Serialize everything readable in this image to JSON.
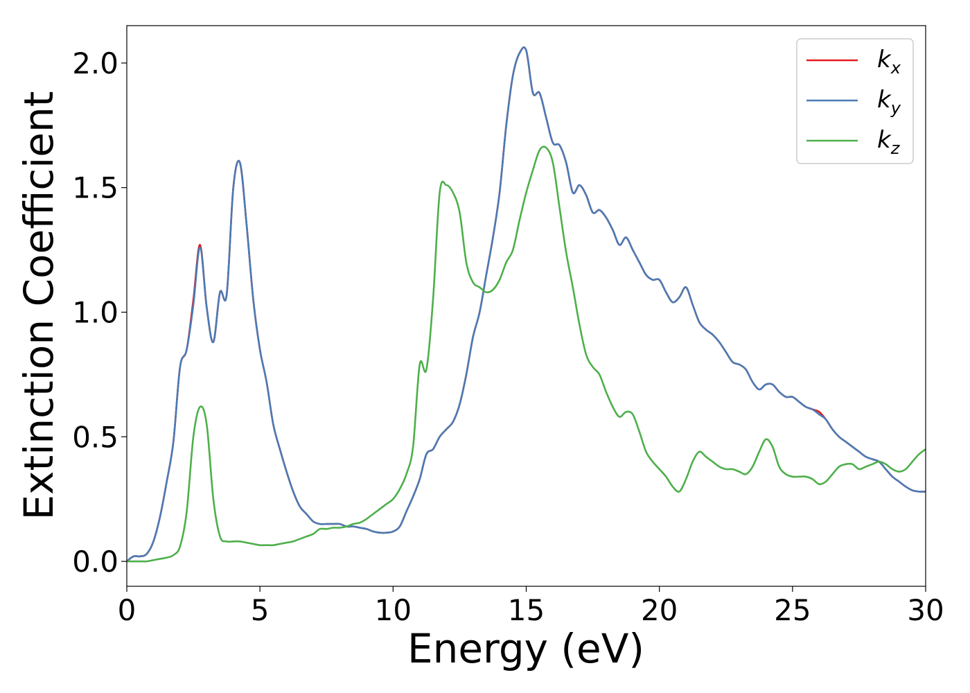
{
  "chart_data": {
    "type": "line",
    "title": "",
    "xlabel": "Energy (eV)",
    "ylabel": "Extinction Coefficient",
    "xlim": [
      0,
      30
    ],
    "ylim": [
      -0.1,
      2.15
    ],
    "xticks": [
      0,
      5,
      10,
      15,
      20,
      25,
      30
    ],
    "xtick_labels": [
      "0",
      "5",
      "10",
      "15",
      "20",
      "25",
      "30"
    ],
    "yticks": [
      0.0,
      0.5,
      1.0,
      1.5,
      2.0
    ],
    "ytick_labels": [
      "0.0",
      "0.5",
      "1.0",
      "1.5",
      "2.0"
    ],
    "grid": false,
    "legend_position": "top-right",
    "x": [
      0,
      0.25,
      0.5,
      0.75,
      1,
      1.25,
      1.5,
      1.75,
      2,
      2.25,
      2.5,
      2.75,
      3,
      3.25,
      3.5,
      3.75,
      4,
      4.25,
      4.5,
      4.75,
      5,
      5.25,
      5.5,
      5.75,
      6,
      6.25,
      6.5,
      6.75,
      7,
      7.25,
      7.5,
      7.75,
      8,
      8.25,
      8.5,
      8.75,
      9,
      9.25,
      9.5,
      9.75,
      10,
      10.25,
      10.5,
      10.75,
      11,
      11.25,
      11.5,
      11.75,
      12,
      12.25,
      12.5,
      12.75,
      13,
      13.25,
      13.5,
      13.75,
      14,
      14.25,
      14.5,
      14.75,
      15,
      15.25,
      15.5,
      15.75,
      16,
      16.25,
      16.5,
      16.75,
      17,
      17.25,
      17.5,
      17.75,
      18,
      18.25,
      18.5,
      18.75,
      19,
      19.25,
      19.5,
      19.75,
      20,
      20.25,
      20.5,
      20.75,
      21,
      21.25,
      21.5,
      21.75,
      22,
      22.25,
      22.5,
      22.75,
      23,
      23.25,
      23.5,
      23.75,
      24,
      24.25,
      24.5,
      24.75,
      25,
      25.25,
      25.5,
      25.75,
      26,
      26.25,
      26.5,
      26.75,
      27,
      27.25,
      27.5,
      27.75,
      28,
      28.25,
      28.5,
      28.75,
      29,
      29.25,
      29.5,
      29.75,
      30
    ],
    "series": [
      {
        "name": "k_x",
        "label_base": "k",
        "label_sub": "x",
        "color": "#e41a1c",
        "values": [
          0.0,
          0.02,
          0.02,
          0.03,
          0.08,
          0.18,
          0.32,
          0.48,
          0.78,
          0.85,
          1.05,
          1.27,
          1.02,
          0.88,
          1.08,
          1.07,
          1.5,
          1.6,
          1.35,
          1.05,
          0.85,
          0.72,
          0.55,
          0.45,
          0.36,
          0.28,
          0.22,
          0.19,
          0.16,
          0.15,
          0.15,
          0.15,
          0.15,
          0.14,
          0.14,
          0.135,
          0.13,
          0.12,
          0.115,
          0.115,
          0.12,
          0.14,
          0.2,
          0.26,
          0.33,
          0.43,
          0.45,
          0.5,
          0.53,
          0.56,
          0.63,
          0.75,
          0.9,
          1.0,
          1.15,
          1.3,
          1.48,
          1.75,
          1.95,
          2.04,
          2.05,
          1.88,
          1.88,
          1.78,
          1.68,
          1.67,
          1.6,
          1.48,
          1.51,
          1.47,
          1.4,
          1.41,
          1.38,
          1.33,
          1.27,
          1.3,
          1.25,
          1.2,
          1.15,
          1.13,
          1.13,
          1.08,
          1.04,
          1.06,
          1.1,
          1.03,
          0.96,
          0.93,
          0.91,
          0.88,
          0.84,
          0.8,
          0.79,
          0.77,
          0.72,
          0.69,
          0.71,
          0.71,
          0.68,
          0.66,
          0.66,
          0.64,
          0.62,
          0.61,
          0.6,
          0.57,
          0.53,
          0.5,
          0.48,
          0.46,
          0.44,
          0.42,
          0.41,
          0.4,
          0.37,
          0.34,
          0.32,
          0.3,
          0.285,
          0.28,
          0.28
        ]
      },
      {
        "name": "k_y",
        "label_base": "k",
        "label_sub": "y",
        "color": "#4a7bb5",
        "values": [
          0.0,
          0.02,
          0.02,
          0.03,
          0.08,
          0.18,
          0.32,
          0.48,
          0.78,
          0.85,
          1.03,
          1.26,
          1.02,
          0.88,
          1.08,
          1.07,
          1.5,
          1.6,
          1.35,
          1.05,
          0.85,
          0.72,
          0.55,
          0.45,
          0.36,
          0.28,
          0.22,
          0.19,
          0.16,
          0.15,
          0.15,
          0.15,
          0.15,
          0.14,
          0.14,
          0.135,
          0.13,
          0.12,
          0.115,
          0.115,
          0.12,
          0.14,
          0.2,
          0.26,
          0.33,
          0.43,
          0.45,
          0.5,
          0.53,
          0.56,
          0.63,
          0.75,
          0.9,
          1.0,
          1.15,
          1.3,
          1.48,
          1.75,
          1.95,
          2.04,
          2.05,
          1.88,
          1.88,
          1.78,
          1.68,
          1.67,
          1.6,
          1.48,
          1.51,
          1.47,
          1.4,
          1.41,
          1.38,
          1.33,
          1.27,
          1.3,
          1.25,
          1.2,
          1.15,
          1.13,
          1.13,
          1.08,
          1.04,
          1.06,
          1.1,
          1.03,
          0.96,
          0.93,
          0.91,
          0.88,
          0.84,
          0.8,
          0.79,
          0.77,
          0.72,
          0.69,
          0.71,
          0.71,
          0.68,
          0.66,
          0.66,
          0.64,
          0.62,
          0.61,
          0.59,
          0.57,
          0.53,
          0.5,
          0.48,
          0.46,
          0.44,
          0.42,
          0.41,
          0.4,
          0.37,
          0.34,
          0.32,
          0.3,
          0.285,
          0.28,
          0.28
        ]
      },
      {
        "name": "k_z",
        "label_base": "k",
        "label_sub": "z",
        "color": "#4daf4a",
        "values": [
          0.0,
          0.0,
          0.0,
          0.0,
          0.005,
          0.01,
          0.015,
          0.025,
          0.06,
          0.2,
          0.5,
          0.62,
          0.55,
          0.25,
          0.1,
          0.08,
          0.08,
          0.08,
          0.075,
          0.07,
          0.065,
          0.065,
          0.065,
          0.07,
          0.075,
          0.08,
          0.09,
          0.1,
          0.11,
          0.13,
          0.13,
          0.135,
          0.135,
          0.14,
          0.15,
          0.155,
          0.17,
          0.19,
          0.21,
          0.23,
          0.25,
          0.29,
          0.35,
          0.46,
          0.79,
          0.77,
          1.05,
          1.48,
          1.51,
          1.48,
          1.4,
          1.2,
          1.12,
          1.1,
          1.08,
          1.09,
          1.13,
          1.2,
          1.25,
          1.37,
          1.48,
          1.57,
          1.65,
          1.66,
          1.6,
          1.42,
          1.24,
          1.1,
          0.95,
          0.83,
          0.78,
          0.75,
          0.68,
          0.62,
          0.58,
          0.6,
          0.59,
          0.52,
          0.44,
          0.4,
          0.37,
          0.34,
          0.3,
          0.28,
          0.33,
          0.4,
          0.44,
          0.42,
          0.4,
          0.38,
          0.37,
          0.37,
          0.36,
          0.35,
          0.38,
          0.44,
          0.49,
          0.46,
          0.38,
          0.35,
          0.34,
          0.34,
          0.34,
          0.33,
          0.31,
          0.32,
          0.35,
          0.38,
          0.39,
          0.39,
          0.37,
          0.38,
          0.39,
          0.4,
          0.39,
          0.37,
          0.36,
          0.37,
          0.4,
          0.43,
          0.45
        ]
      }
    ]
  }
}
